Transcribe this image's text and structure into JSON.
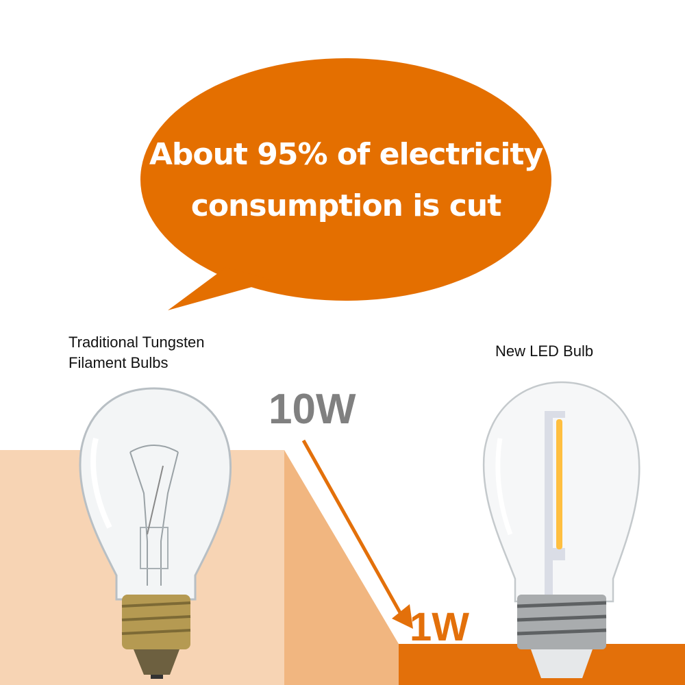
{
  "headline": {
    "line1": "About 95% of electricity",
    "line2": "consumption is cut"
  },
  "left_bulb": {
    "label_line1": "Traditional Tungsten",
    "label_line2": "Filament Bulbs",
    "wattage": "10W"
  },
  "right_bulb": {
    "label": "New LED Bulb",
    "wattage": "1W"
  },
  "colors": {
    "bubble": "#e46f00",
    "step_light": "#f7d4b4",
    "step_mid": "#f1b680",
    "step_dark": "#e3700a",
    "watt_old": "#808080",
    "watt_new": "#e3700a",
    "filament": "#ffbf40"
  }
}
